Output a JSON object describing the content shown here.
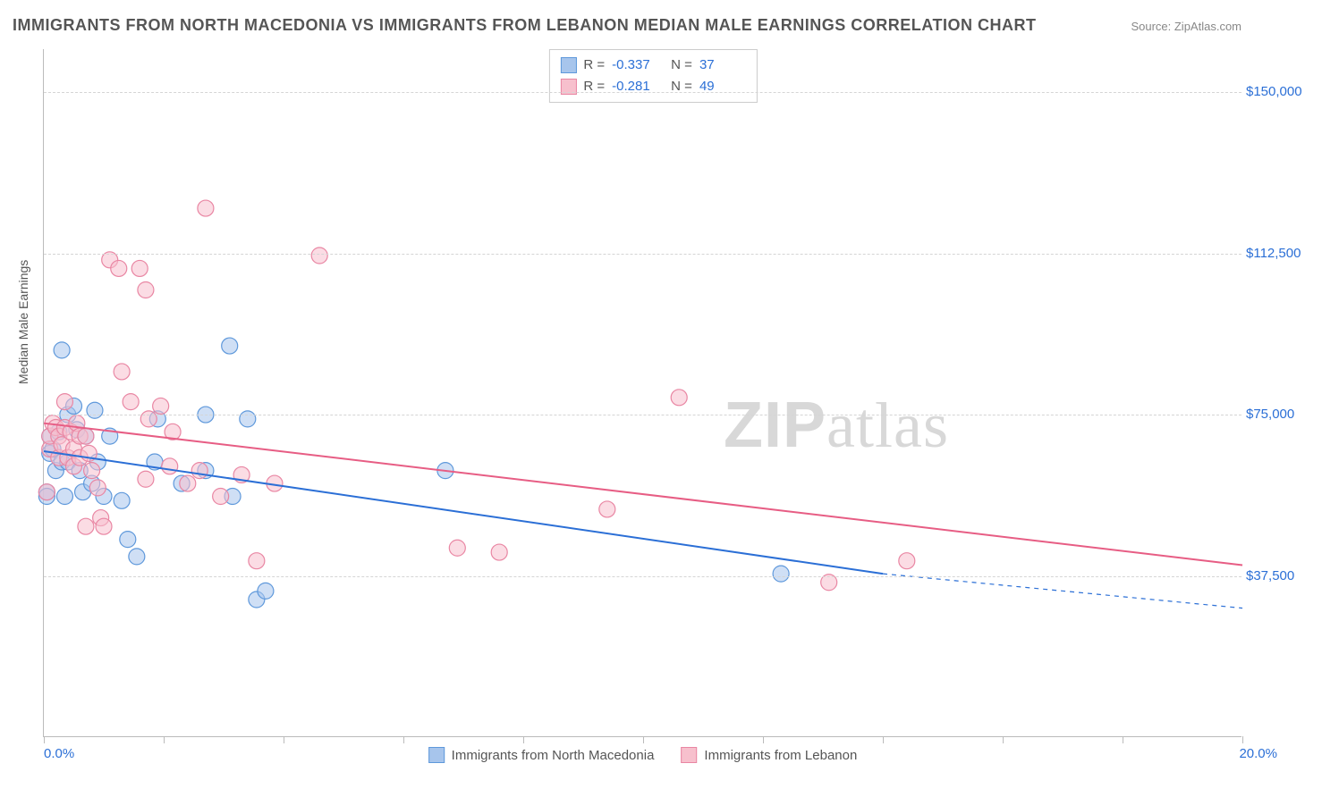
{
  "title": "IMMIGRANTS FROM NORTH MACEDONIA VS IMMIGRANTS FROM LEBANON MEDIAN MALE EARNINGS CORRELATION CHART",
  "source": "Source: ZipAtlas.com",
  "watermark_a": "ZIP",
  "watermark_b": "atlas",
  "ylabel": "Median Male Earnings",
  "chart": {
    "type": "scatter",
    "xlim": [
      0,
      20
    ],
    "ylim": [
      0,
      160000
    ],
    "x_tick_positions": [
      0,
      2,
      4,
      6,
      8,
      10,
      12,
      14,
      16,
      18,
      20
    ],
    "x_tick_labels_shown": {
      "0": "0.0%",
      "20": "20.0%"
    },
    "y_gridlines": [
      37500,
      75000,
      112500,
      150000
    ],
    "y_tick_labels": [
      "$37,500",
      "$75,000",
      "$112,500",
      "$150,000"
    ],
    "background_color": "#ffffff",
    "grid_color": "#d5d5d5",
    "marker_radius": 9,
    "marker_stroke_width": 1.2,
    "trend_line_width": 2,
    "series": [
      {
        "name": "Immigrants from North Macedonia",
        "color_fill": "#a7c5ec",
        "color_stroke": "#5e98db",
        "line_color": "#2b6fd6",
        "r": "-0.337",
        "n": "37",
        "trend": {
          "x1": 0,
          "y1": 66500,
          "x2": 14,
          "y2": 38000,
          "dash_to_x": 20,
          "dash_to_y": 30000
        },
        "points": [
          [
            0.05,
            57000
          ],
          [
            0.05,
            56000
          ],
          [
            0.1,
            66000
          ],
          [
            0.1,
            70000
          ],
          [
            0.15,
            67000
          ],
          [
            0.2,
            62000
          ],
          [
            0.25,
            71000
          ],
          [
            0.3,
            90000
          ],
          [
            0.3,
            64000
          ],
          [
            0.35,
            56000
          ],
          [
            0.4,
            75000
          ],
          [
            0.4,
            64000
          ],
          [
            0.5,
            77000
          ],
          [
            0.55,
            71500
          ],
          [
            0.6,
            62000
          ],
          [
            0.65,
            57000
          ],
          [
            0.7,
            70000
          ],
          [
            0.8,
            59000
          ],
          [
            0.85,
            76000
          ],
          [
            0.9,
            64000
          ],
          [
            1.0,
            56000
          ],
          [
            1.1,
            70000
          ],
          [
            1.3,
            55000
          ],
          [
            1.4,
            46000
          ],
          [
            1.55,
            42000
          ],
          [
            1.85,
            64000
          ],
          [
            1.9,
            74000
          ],
          [
            2.3,
            59000
          ],
          [
            2.7,
            62000
          ],
          [
            2.7,
            75000
          ],
          [
            3.1,
            91000
          ],
          [
            3.15,
            56000
          ],
          [
            3.4,
            74000
          ],
          [
            3.55,
            32000
          ],
          [
            3.7,
            34000
          ],
          [
            6.7,
            62000
          ],
          [
            12.3,
            38000
          ]
        ]
      },
      {
        "name": "Immigrants from Lebanon",
        "color_fill": "#f7c0cd",
        "color_stroke": "#e986a3",
        "line_color": "#e75d84",
        "r": "-0.281",
        "n": "49",
        "trend": {
          "x1": 0,
          "y1": 73000,
          "x2": 20,
          "y2": 40000
        },
        "points": [
          [
            0.05,
            57000
          ],
          [
            0.1,
            67000
          ],
          [
            0.1,
            70000
          ],
          [
            0.15,
            73000
          ],
          [
            0.2,
            72000
          ],
          [
            0.25,
            65000
          ],
          [
            0.25,
            70000
          ],
          [
            0.3,
            68000
          ],
          [
            0.35,
            72000
          ],
          [
            0.35,
            78000
          ],
          [
            0.4,
            65000
          ],
          [
            0.45,
            71000
          ],
          [
            0.5,
            67000
          ],
          [
            0.5,
            63000
          ],
          [
            0.55,
            73000
          ],
          [
            0.6,
            70000
          ],
          [
            0.6,
            65000
          ],
          [
            0.7,
            49000
          ],
          [
            0.7,
            70000
          ],
          [
            0.75,
            66000
          ],
          [
            0.8,
            62000
          ],
          [
            0.9,
            58000
          ],
          [
            0.95,
            51000
          ],
          [
            1.0,
            49000
          ],
          [
            1.1,
            111000
          ],
          [
            1.25,
            109000
          ],
          [
            1.3,
            85000
          ],
          [
            1.45,
            78000
          ],
          [
            1.6,
            109000
          ],
          [
            1.7,
            104000
          ],
          [
            1.7,
            60000
          ],
          [
            1.75,
            74000
          ],
          [
            1.95,
            77000
          ],
          [
            2.1,
            63000
          ],
          [
            2.15,
            71000
          ],
          [
            2.4,
            59000
          ],
          [
            2.6,
            62000
          ],
          [
            2.7,
            123000
          ],
          [
            2.95,
            56000
          ],
          [
            3.3,
            61000
          ],
          [
            3.55,
            41000
          ],
          [
            3.85,
            59000
          ],
          [
            4.6,
            112000
          ],
          [
            6.9,
            44000
          ],
          [
            7.6,
            43000
          ],
          [
            9.4,
            53000
          ],
          [
            10.6,
            79000
          ],
          [
            13.1,
            36000
          ],
          [
            14.4,
            41000
          ]
        ]
      }
    ]
  },
  "legend_bottom": [
    {
      "label": "Immigrants from North Macedonia",
      "fill": "#a7c5ec",
      "stroke": "#5e98db"
    },
    {
      "label": "Immigrants from Lebanon",
      "fill": "#f7c0cd",
      "stroke": "#e986a3"
    }
  ]
}
